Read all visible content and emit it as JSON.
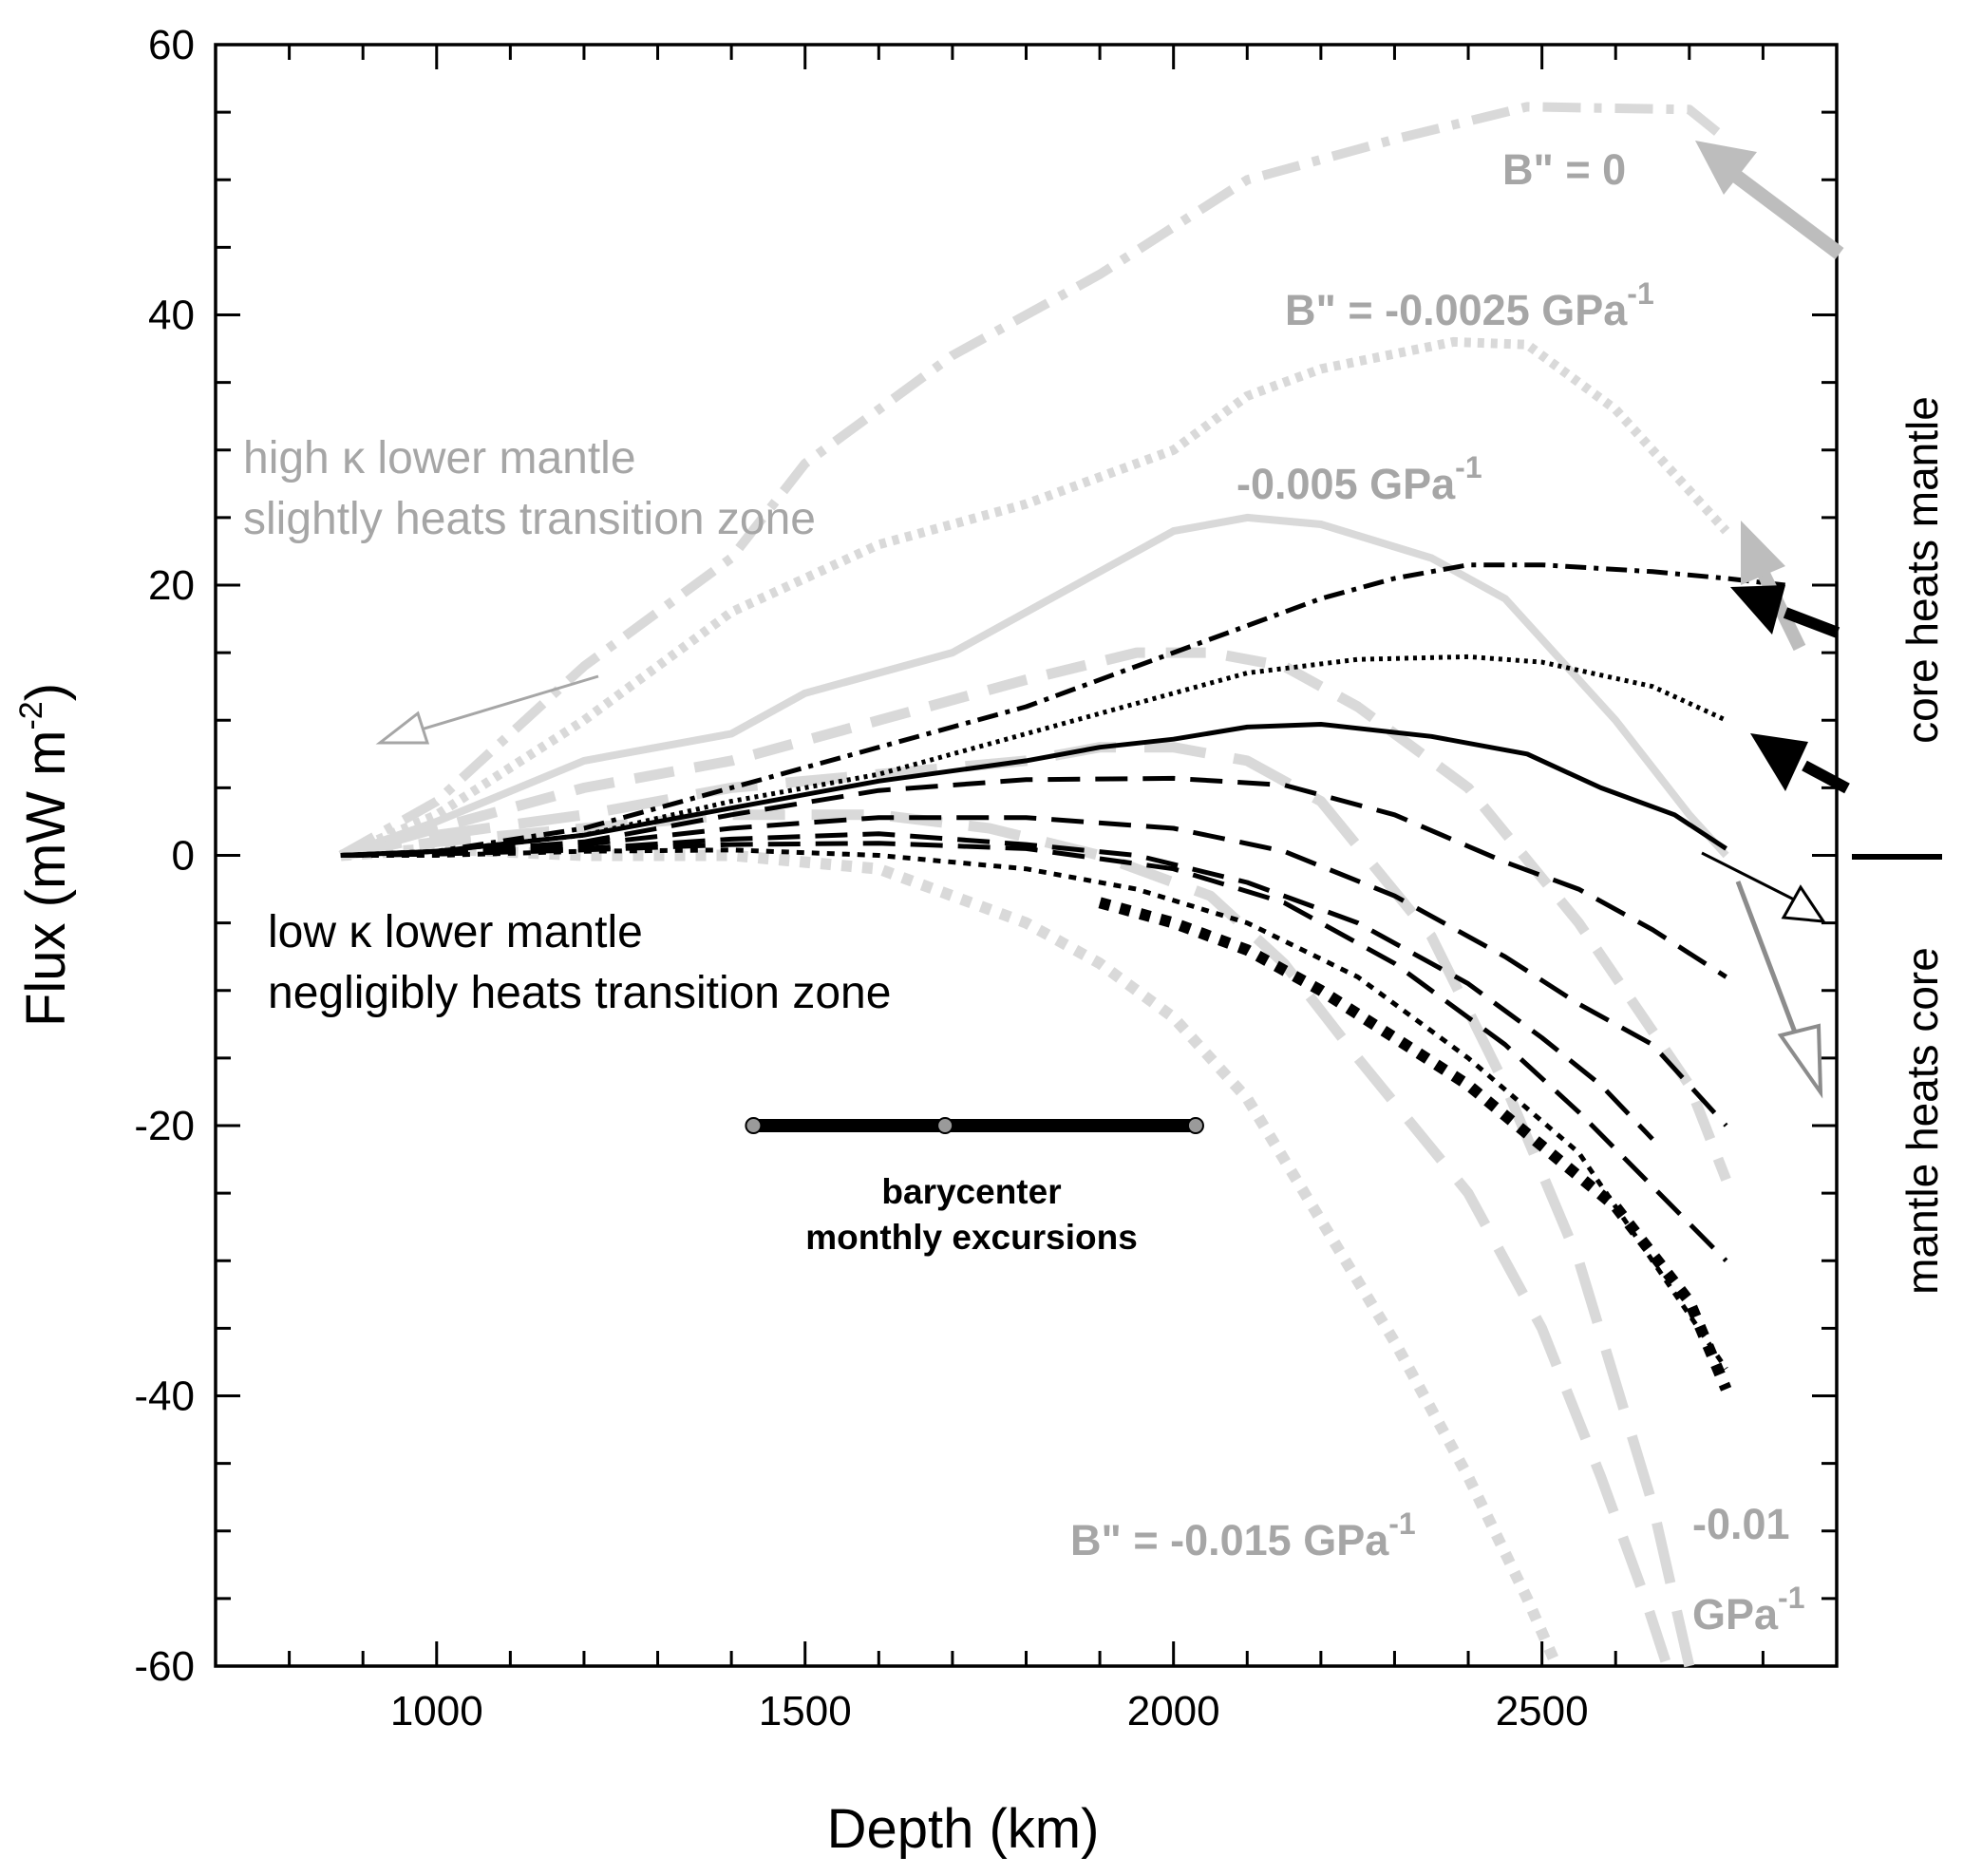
{
  "chart_data": {
    "type": "line",
    "xlabel": "Depth (km)",
    "ylabel": "Flux (mW m",
    "ylabel_sup": "-2",
    "ylabel_close": ")",
    "xlim": [
      700,
      2900
    ],
    "ylim": [
      -60,
      60
    ],
    "x_ticks": [
      1000,
      1500,
      2000,
      2500
    ],
    "y_ticks": [
      60,
      40,
      20,
      0,
      -20,
      -40,
      -60
    ],
    "grid": false,
    "right_axis_labels": {
      "top": "core heats mantle",
      "bottom": "mantle heats core"
    },
    "annotations": {
      "high_line1": "high κ lower mantle",
      "high_line2": "slightly heats transition zone",
      "low_line1": "low κ lower mantle",
      "low_line2": "negligibly heats transition zone",
      "b0": "B\" = 0",
      "b00025": "B\" = -0.0025 GPa",
      "b0005": "-0.005 GPa",
      "b0015": "B\" = -0.015 GPa",
      "b001_line1": "-0.01",
      "b001_line2": "GPa",
      "sup_minus1": "-1",
      "bary_line1": "barycenter",
      "bary_line2": "monthly excursions"
    },
    "barycenter": {
      "x_range": [
        1430,
        2030
      ],
      "y": -20,
      "points": [
        1430,
        1690,
        2030
      ]
    },
    "series": [
      {
        "group": "high",
        "color": "#d9d9d9",
        "dash": "40,14,8,14",
        "width": 10,
        "x": [
          870,
          1000,
          1200,
          1400,
          1500,
          1700,
          1900,
          2100,
          2300,
          2480,
          2700,
          2750
        ],
        "y": [
          0,
          4,
          14,
          22,
          29,
          37,
          43,
          50,
          53,
          55.4,
          55.2,
          53
        ]
      },
      {
        "group": "high",
        "color": "#d9d9d9",
        "dash": "7,7",
        "width": 10,
        "x": [
          870,
          1000,
          1200,
          1400,
          1600,
          1800,
          2000,
          2100,
          2200,
          2380,
          2480,
          2600,
          2700,
          2750
        ],
        "y": [
          0,
          3,
          10,
          18,
          23,
          26,
          30,
          34,
          36,
          38,
          37.8,
          33,
          27,
          24
        ]
      },
      {
        "group": "high",
        "color": "#d9d9d9",
        "dash": "",
        "width": 8,
        "x": [
          870,
          1000,
          1200,
          1400,
          1500,
          1700,
          1900,
          2000,
          2100,
          2200,
          2350,
          2450,
          2600,
          2700,
          2750
        ],
        "y": [
          0,
          2.5,
          7,
          9,
          12,
          15,
          21,
          24,
          25,
          24.5,
          22,
          19,
          10,
          3,
          0
        ]
      },
      {
        "group": "high",
        "color": "#d9d9d9",
        "dash": "42,22",
        "width": 11,
        "x": [
          870,
          1000,
          1200,
          1400,
          1600,
          1800,
          1950,
          2050,
          2150,
          2250,
          2400,
          2550,
          2700,
          2750
        ],
        "y": [
          0,
          2,
          5,
          7,
          10,
          13,
          15,
          15,
          14,
          11,
          5,
          -5,
          -17,
          -24
        ]
      },
      {
        "group": "high",
        "color": "#d9d9d9",
        "dash": "65,30",
        "width": 11,
        "x": [
          870,
          1000,
          1200,
          1400,
          1600,
          1800,
          1900,
          2000,
          2100,
          2200,
          2350,
          2450,
          2550,
          2650,
          2700
        ],
        "y": [
          0,
          1.5,
          3,
          5,
          6,
          7,
          8,
          8,
          7,
          4,
          -6,
          -17,
          -30,
          -48,
          -60
        ]
      },
      {
        "group": "high",
        "color": "#d9d9d9",
        "dash": "55,28",
        "width": 11,
        "x": [
          870,
          1000,
          1200,
          1400,
          1600,
          1750,
          1900,
          2050,
          2150,
          2250,
          2400,
          2500,
          2580,
          2640,
          2670
        ],
        "y": [
          0,
          1,
          2,
          3,
          3,
          2,
          0,
          -3,
          -8,
          -15,
          -25,
          -35,
          -46,
          -55,
          -60
        ]
      },
      {
        "group": "high",
        "color": "#d9d9d9",
        "dash": "11,11",
        "width": 12,
        "x": [
          870,
          1000,
          1200,
          1400,
          1600,
          1700,
          1800,
          1900,
          2000,
          2100,
          2200,
          2300,
          2400,
          2480,
          2520
        ],
        "y": [
          0,
          0.5,
          0,
          0,
          -1,
          -3,
          -5,
          -8,
          -12,
          -18,
          -27,
          -36,
          -46,
          -55,
          -60
        ]
      },
      {
        "group": "low",
        "color": "#000000",
        "dash": "22,8,5,8",
        "width": 5,
        "x": [
          870,
          1000,
          1200,
          1400,
          1600,
          1800,
          2000,
          2100,
          2200,
          2300,
          2400,
          2500,
          2650,
          2750,
          2830
        ],
        "y": [
          0,
          0.3,
          2,
          5,
          8,
          11,
          15,
          17,
          19,
          20.5,
          21.5,
          21.5,
          21,
          20.5,
          20
        ]
      },
      {
        "group": "low",
        "color": "#000000",
        "dash": "4,5",
        "width": 5,
        "x": [
          870,
          1000,
          1200,
          1400,
          1600,
          1800,
          2000,
          2100,
          2250,
          2400,
          2500,
          2650,
          2730,
          2750
        ],
        "y": [
          0,
          0.3,
          1.5,
          4,
          6,
          9,
          12,
          13.5,
          14.5,
          14.7,
          14.3,
          12.5,
          10.5,
          10
        ]
      },
      {
        "group": "low",
        "color": "#000000",
        "dash": "",
        "width": 5,
        "x": [
          870,
          1000,
          1200,
          1400,
          1600,
          1800,
          1900,
          2000,
          2100,
          2200,
          2350,
          2480,
          2580,
          2680,
          2750
        ],
        "y": [
          0,
          0.3,
          1.5,
          3.5,
          5.5,
          7,
          8,
          8.6,
          9.5,
          9.7,
          8.8,
          7.5,
          5,
          3,
          0.5
        ]
      },
      {
        "group": "low",
        "color": "#000000",
        "dash": "34,16",
        "width": 5,
        "x": [
          870,
          1000,
          1200,
          1400,
          1600,
          1800,
          2000,
          2150,
          2300,
          2450,
          2550,
          2650,
          2750
        ],
        "y": [
          0,
          0.2,
          1,
          3,
          4.8,
          5.6,
          5.7,
          5.2,
          3,
          -0.5,
          -2.5,
          -5.5,
          -9
        ]
      },
      {
        "group": "low",
        "color": "#000000",
        "dash": "34,16",
        "width": 5,
        "x": [
          870,
          1000,
          1200,
          1400,
          1600,
          1800,
          2000,
          2150,
          2300,
          2450,
          2550,
          2650,
          2750
        ],
        "y": [
          0,
          0.1,
          0.8,
          2,
          2.8,
          2.8,
          2,
          0.3,
          -3,
          -7.5,
          -11,
          -14,
          -20
        ]
      },
      {
        "group": "low",
        "color": "#000000",
        "dash": "34,16",
        "width": 5,
        "x": [
          870,
          1000,
          1200,
          1400,
          1600,
          1800,
          1950,
          2100,
          2250,
          2400,
          2500,
          2580,
          2650
        ],
        "y": [
          0,
          0.1,
          0.5,
          1.2,
          1.6,
          0.8,
          0,
          -2,
          -5,
          -9.5,
          -13.5,
          -17,
          -21
        ]
      },
      {
        "group": "low",
        "color": "#000000",
        "dash": "34,16",
        "width": 5,
        "x": [
          870,
          1000,
          1200,
          1400,
          1600,
          1800,
          2000,
          2150,
          2300,
          2450,
          2550,
          2650,
          2750
        ],
        "y": [
          0,
          0.1,
          0.4,
          0.8,
          0.9,
          0.5,
          -1,
          -3.5,
          -8,
          -14,
          -19,
          -24.5,
          -30
        ]
      },
      {
        "group": "low",
        "color": "#000000",
        "dash": "8,8",
        "width": 5,
        "x": [
          870,
          1000,
          1200,
          1400,
          1600,
          1800,
          1950,
          2100,
          2250,
          2400,
          2550,
          2650,
          2750
        ],
        "y": [
          0,
          0,
          0.3,
          0.4,
          0,
          -1,
          -2.5,
          -5,
          -9,
          -15,
          -22,
          -30,
          -38
        ]
      },
      {
        "group": "low",
        "color": "#000000",
        "dash": "11,11",
        "width": 12,
        "x": [
          1900,
          2000,
          2100,
          2200,
          2300,
          2400,
          2500,
          2600,
          2700,
          2750
        ],
        "y": [
          -3.5,
          -5,
          -7,
          -10,
          -13.5,
          -17,
          -21.5,
          -26,
          -33,
          -39.5
        ]
      }
    ]
  }
}
